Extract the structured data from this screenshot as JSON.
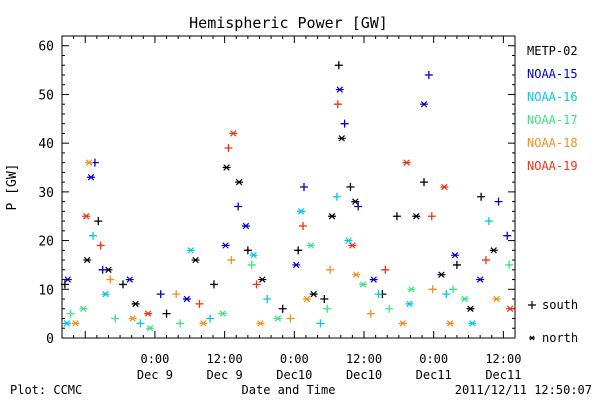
{
  "chart_data": {
    "type": "scatter",
    "title": "Hemispheric Power [GW]",
    "ylabel": "P [GW]",
    "xlabel": "Date and Time",
    "ylim": [
      0,
      62
    ],
    "yticks": [
      0,
      10,
      20,
      30,
      40,
      50,
      60
    ],
    "xlim": [
      "2011-12-08T08:00",
      "2011-12-11T14:00"
    ],
    "xticks": [
      {
        "t": "2011-12-09T00:00",
        "time": "0:00",
        "date": "Dec 9"
      },
      {
        "t": "2011-12-09T12:00",
        "time": "12:00",
        "date": "Dec 9"
      },
      {
        "t": "2011-12-10T00:00",
        "time": "0:00",
        "date": "Dec10"
      },
      {
        "t": "2011-12-10T12:00",
        "time": "12:00",
        "date": "Dec10"
      },
      {
        "t": "2011-12-11T00:00",
        "time": "0:00",
        "date": "Dec11"
      },
      {
        "t": "2011-12-11T12:00",
        "time": "12:00",
        "date": "Dec11"
      }
    ],
    "grid": false,
    "legend_position": "right",
    "marker_legend": [
      {
        "symbol": "+",
        "label": "south"
      },
      {
        "symbol": "*",
        "label": "north"
      }
    ],
    "series": [
      {
        "name": "METP-02",
        "color": "#000000",
        "points": [
          {
            "t": "2011-12-08T08:30",
            "v": 11,
            "h": "south"
          },
          {
            "t": "2011-12-08T12:20",
            "v": 16,
            "h": "north"
          },
          {
            "t": "2011-12-08T14:15",
            "v": 24,
            "h": "south"
          },
          {
            "t": "2011-12-08T16:00",
            "v": 14,
            "h": "north"
          },
          {
            "t": "2011-12-08T18:30",
            "v": 11,
            "h": "south"
          },
          {
            "t": "2011-12-08T20:40",
            "v": 7,
            "h": "north"
          },
          {
            "t": "2011-12-09T02:00",
            "v": 5,
            "h": "south"
          },
          {
            "t": "2011-12-09T07:00",
            "v": 16,
            "h": "north"
          },
          {
            "t": "2011-12-09T10:10",
            "v": 11,
            "h": "south"
          },
          {
            "t": "2011-12-09T12:20",
            "v": 35,
            "h": "north"
          },
          {
            "t": "2011-12-09T14:30",
            "v": 32,
            "h": "north"
          },
          {
            "t": "2011-12-09T16:00",
            "v": 18,
            "h": "south"
          },
          {
            "t": "2011-12-09T18:30",
            "v": 12,
            "h": "north"
          },
          {
            "t": "2011-12-09T22:00",
            "v": 6,
            "h": "south"
          },
          {
            "t": "2011-12-10T00:40",
            "v": 18,
            "h": "south"
          },
          {
            "t": "2011-12-10T03:20",
            "v": 9,
            "h": "north"
          },
          {
            "t": "2011-12-10T05:10",
            "v": 8,
            "h": "south"
          },
          {
            "t": "2011-12-10T06:30",
            "v": 25,
            "h": "north"
          },
          {
            "t": "2011-12-10T07:40",
            "v": 56,
            "h": "south"
          },
          {
            "t": "2011-12-10T08:10",
            "v": 41,
            "h": "north"
          },
          {
            "t": "2011-12-10T09:40",
            "v": 31,
            "h": "south"
          },
          {
            "t": "2011-12-10T10:30",
            "v": 28,
            "h": "north"
          },
          {
            "t": "2011-12-10T15:10",
            "v": 9,
            "h": "south"
          },
          {
            "t": "2011-12-10T17:40",
            "v": 25,
            "h": "south"
          },
          {
            "t": "2011-12-10T21:00",
            "v": 25,
            "h": "north"
          },
          {
            "t": "2011-12-10T22:20",
            "v": 32,
            "h": "south"
          },
          {
            "t": "2011-12-11T01:20",
            "v": 13,
            "h": "north"
          },
          {
            "t": "2011-12-11T04:00",
            "v": 15,
            "h": "south"
          },
          {
            "t": "2011-12-11T06:20",
            "v": 6,
            "h": "north"
          },
          {
            "t": "2011-12-11T08:10",
            "v": 29,
            "h": "south"
          },
          {
            "t": "2011-12-11T10:20",
            "v": 18,
            "h": "north"
          }
        ]
      },
      {
        "name": "NOAA-15",
        "color": "#0000cc",
        "points": [
          {
            "t": "2011-12-08T09:00",
            "v": 12,
            "h": "north"
          },
          {
            "t": "2011-12-08T13:00",
            "v": 33,
            "h": "north"
          },
          {
            "t": "2011-12-08T13:40",
            "v": 36,
            "h": "south"
          },
          {
            "t": "2011-12-08T15:00",
            "v": 14,
            "h": "south"
          },
          {
            "t": "2011-12-08T19:40",
            "v": 12,
            "h": "north"
          },
          {
            "t": "2011-12-09T01:00",
            "v": 9,
            "h": "south"
          },
          {
            "t": "2011-12-09T05:30",
            "v": 8,
            "h": "north"
          },
          {
            "t": "2011-12-09T12:10",
            "v": 19,
            "h": "north"
          },
          {
            "t": "2011-12-09T14:20",
            "v": 27,
            "h": "south"
          },
          {
            "t": "2011-12-09T15:40",
            "v": 23,
            "h": "north"
          },
          {
            "t": "2011-12-10T00:20",
            "v": 15,
            "h": "north"
          },
          {
            "t": "2011-12-10T01:40",
            "v": 31,
            "h": "south"
          },
          {
            "t": "2011-12-10T07:50",
            "v": 51,
            "h": "north"
          },
          {
            "t": "2011-12-10T08:40",
            "v": 44,
            "h": "south"
          },
          {
            "t": "2011-12-10T11:00",
            "v": 27,
            "h": "south"
          },
          {
            "t": "2011-12-10T13:40",
            "v": 12,
            "h": "north"
          },
          {
            "t": "2011-12-10T22:20",
            "v": 48,
            "h": "north"
          },
          {
            "t": "2011-12-10T23:10",
            "v": 54,
            "h": "south"
          },
          {
            "t": "2011-12-11T03:40",
            "v": 17,
            "h": "north"
          },
          {
            "t": "2011-12-11T08:00",
            "v": 12,
            "h": "north"
          },
          {
            "t": "2011-12-11T11:10",
            "v": 28,
            "h": "south"
          },
          {
            "t": "2011-12-11T12:40",
            "v": 21,
            "h": "south"
          }
        ]
      },
      {
        "name": "NOAA-16",
        "color": "#00c8e8",
        "points": [
          {
            "t": "2011-12-08T08:50",
            "v": 3,
            "h": "north"
          },
          {
            "t": "2011-12-08T13:20",
            "v": 21,
            "h": "south"
          },
          {
            "t": "2011-12-08T15:30",
            "v": 9,
            "h": "north"
          },
          {
            "t": "2011-12-08T21:30",
            "v": 3,
            "h": "south"
          },
          {
            "t": "2011-12-09T06:10",
            "v": 18,
            "h": "north"
          },
          {
            "t": "2011-12-09T09:30",
            "v": 4,
            "h": "south"
          },
          {
            "t": "2011-12-09T17:00",
            "v": 17,
            "h": "north"
          },
          {
            "t": "2011-12-09T19:20",
            "v": 8,
            "h": "south"
          },
          {
            "t": "2011-12-10T01:10",
            "v": 26,
            "h": "north"
          },
          {
            "t": "2011-12-10T04:30",
            "v": 3,
            "h": "south"
          },
          {
            "t": "2011-12-10T07:20",
            "v": 29,
            "h": "south"
          },
          {
            "t": "2011-12-10T09:20",
            "v": 20,
            "h": "north"
          },
          {
            "t": "2011-12-10T14:30",
            "v": 9,
            "h": "south"
          },
          {
            "t": "2011-12-10T19:50",
            "v": 7,
            "h": "north"
          },
          {
            "t": "2011-12-11T02:10",
            "v": 9,
            "h": "south"
          },
          {
            "t": "2011-12-11T06:40",
            "v": 3,
            "h": "north"
          },
          {
            "t": "2011-12-11T09:30",
            "v": 24,
            "h": "south"
          }
        ]
      },
      {
        "name": "NOAA-17",
        "color": "#40e080",
        "points": [
          {
            "t": "2011-12-08T09:30",
            "v": 5,
            "h": "south"
          },
          {
            "t": "2011-12-08T11:40",
            "v": 6,
            "h": "north"
          },
          {
            "t": "2011-12-08T17:10",
            "v": 4,
            "h": "south"
          },
          {
            "t": "2011-12-08T23:10",
            "v": 2,
            "h": "north"
          },
          {
            "t": "2011-12-09T04:20",
            "v": 3,
            "h": "south"
          },
          {
            "t": "2011-12-09T11:40",
            "v": 5,
            "h": "north"
          },
          {
            "t": "2011-12-09T16:40",
            "v": 15,
            "h": "south"
          },
          {
            "t": "2011-12-09T21:10",
            "v": 4,
            "h": "north"
          },
          {
            "t": "2011-12-10T02:50",
            "v": 19,
            "h": "north"
          },
          {
            "t": "2011-12-10T05:40",
            "v": 6,
            "h": "south"
          },
          {
            "t": "2011-12-10T11:50",
            "v": 11,
            "h": "north"
          },
          {
            "t": "2011-12-10T16:20",
            "v": 6,
            "h": "south"
          },
          {
            "t": "2011-12-10T20:10",
            "v": 10,
            "h": "north"
          },
          {
            "t": "2011-12-11T03:20",
            "v": 10,
            "h": "south"
          },
          {
            "t": "2011-12-11T05:20",
            "v": 8,
            "h": "north"
          },
          {
            "t": "2011-12-11T13:00",
            "v": 15,
            "h": "south"
          }
        ]
      },
      {
        "name": "NOAA-18",
        "color": "#f09020",
        "points": [
          {
            "t": "2011-12-08T10:20",
            "v": 3,
            "h": "north"
          },
          {
            "t": "2011-12-08T12:40",
            "v": 36,
            "h": "north"
          },
          {
            "t": "2011-12-08T16:20",
            "v": 12,
            "h": "south"
          },
          {
            "t": "2011-12-08T20:10",
            "v": 4,
            "h": "north"
          },
          {
            "t": "2011-12-09T03:40",
            "v": 9,
            "h": "south"
          },
          {
            "t": "2011-12-09T08:20",
            "v": 3,
            "h": "north"
          },
          {
            "t": "2011-12-09T13:10",
            "v": 16,
            "h": "south"
          },
          {
            "t": "2011-12-09T18:10",
            "v": 3,
            "h": "north"
          },
          {
            "t": "2011-12-09T23:20",
            "v": 4,
            "h": "south"
          },
          {
            "t": "2011-12-10T02:10",
            "v": 8,
            "h": "north"
          },
          {
            "t": "2011-12-10T06:10",
            "v": 14,
            "h": "south"
          },
          {
            "t": "2011-12-10T10:40",
            "v": 13,
            "h": "north"
          },
          {
            "t": "2011-12-10T13:10",
            "v": 5,
            "h": "south"
          },
          {
            "t": "2011-12-10T18:40",
            "v": 3,
            "h": "north"
          },
          {
            "t": "2011-12-10T23:50",
            "v": 10,
            "h": "south"
          },
          {
            "t": "2011-12-11T02:50",
            "v": 3,
            "h": "north"
          },
          {
            "t": "2011-12-11T10:50",
            "v": 8,
            "h": "north"
          }
        ]
      },
      {
        "name": "NOAA-19",
        "color": "#ee3311",
        "points": [
          {
            "t": "2011-12-08T12:10",
            "v": 25,
            "h": "north"
          },
          {
            "t": "2011-12-08T14:40",
            "v": 19,
            "h": "south"
          },
          {
            "t": "2011-12-08T22:50",
            "v": 5,
            "h": "north"
          },
          {
            "t": "2011-12-09T07:40",
            "v": 7,
            "h": "south"
          },
          {
            "t": "2011-12-09T12:40",
            "v": 39,
            "h": "south"
          },
          {
            "t": "2011-12-09T13:30",
            "v": 42,
            "h": "north"
          },
          {
            "t": "2011-12-09T17:30",
            "v": 11,
            "h": "south"
          },
          {
            "t": "2011-12-10T01:30",
            "v": 23,
            "h": "south"
          },
          {
            "t": "2011-12-10T07:30",
            "v": 48,
            "h": "south"
          },
          {
            "t": "2011-12-10T10:00",
            "v": 19,
            "h": "north"
          },
          {
            "t": "2011-12-10T15:40",
            "v": 14,
            "h": "south"
          },
          {
            "t": "2011-12-10T19:20",
            "v": 36,
            "h": "north"
          },
          {
            "t": "2011-12-10T23:40",
            "v": 25,
            "h": "south"
          },
          {
            "t": "2011-12-11T01:50",
            "v": 31,
            "h": "north"
          },
          {
            "t": "2011-12-11T09:00",
            "v": 16,
            "h": "south"
          },
          {
            "t": "2011-12-11T13:10",
            "v": 6,
            "h": "north"
          }
        ]
      }
    ]
  },
  "footer": {
    "plot_credit": "Plot: CCMC",
    "timestamp": "2011/12/11 12:50:07"
  }
}
